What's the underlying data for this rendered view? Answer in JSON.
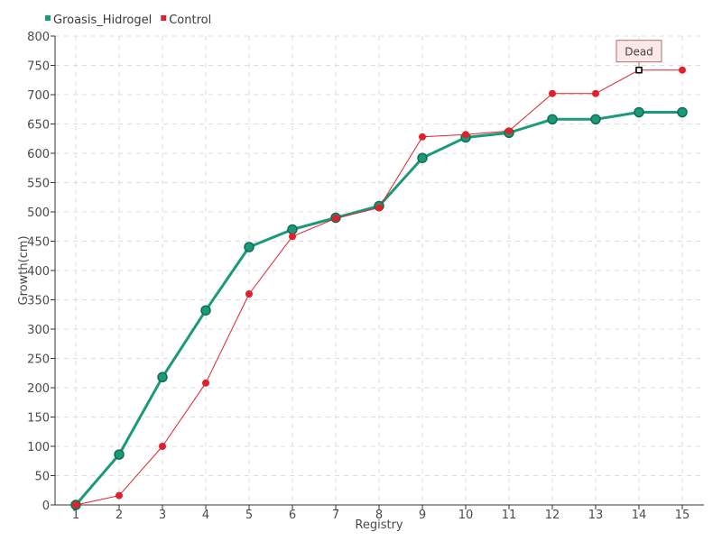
{
  "chart_data": {
    "type": "line",
    "title": "",
    "xlabel": "Registry",
    "ylabel": "Growth(cm)",
    "categories": [
      "1",
      "2",
      "3",
      "4",
      "5",
      "6",
      "7",
      "8",
      "9",
      "10",
      "11",
      "12",
      "13",
      "14",
      "15"
    ],
    "ylim": [
      0,
      800
    ],
    "yticks": [
      0,
      50,
      100,
      150,
      200,
      250,
      300,
      350,
      400,
      450,
      500,
      550,
      600,
      650,
      700,
      750,
      800
    ],
    "grid": true,
    "legend_position": "top-left",
    "series": [
      {
        "name": "Groasis_Hidrogel",
        "color": "#1a9a78",
        "values": [
          0,
          86,
          218,
          332,
          440,
          470,
          490,
          510,
          592,
          627,
          635,
          658,
          658,
          670,
          670
        ]
      },
      {
        "name": "Control",
        "color": "#e0202c",
        "values": [
          0,
          16,
          100,
          208,
          360,
          458,
          489,
          507,
          628,
          632,
          638,
          702,
          702,
          742,
          742
        ]
      }
    ],
    "annotations": [
      {
        "text": "Dead",
        "series": "Control",
        "category": "14"
      }
    ]
  }
}
